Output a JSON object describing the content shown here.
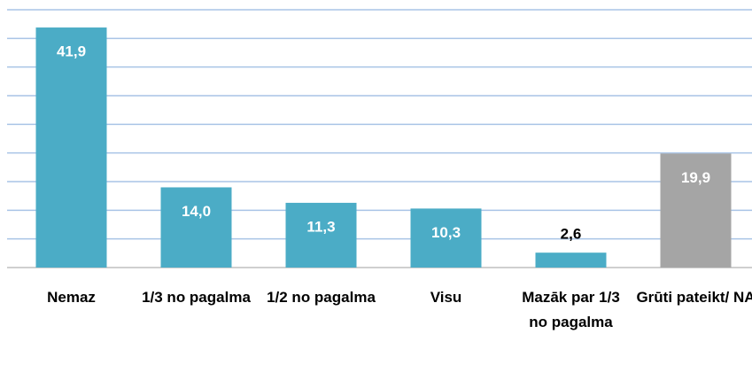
{
  "chart_data": {
    "type": "bar",
    "categories": [
      "Nemaz",
      "1/3 no pagalma",
      "1/2 no pagalma",
      "Visu",
      "Mazāk par 1/3 no pagalma",
      "Grūti pateikt/ NA"
    ],
    "values": [
      41.9,
      14.0,
      11.3,
      10.3,
      2.6,
      19.9
    ],
    "value_labels": [
      "41,9",
      "14,0",
      "11,3",
      "10,3",
      "2,6",
      "19,9"
    ],
    "colors": [
      "#4bacc6",
      "#4bacc6",
      "#4bacc6",
      "#4bacc6",
      "#4bacc6",
      "#a5a5a5"
    ],
    "ylim": [
      0,
      45
    ],
    "yticks": [
      0,
      5,
      10,
      15,
      20,
      25,
      30,
      35,
      40,
      45
    ],
    "grid": true
  }
}
